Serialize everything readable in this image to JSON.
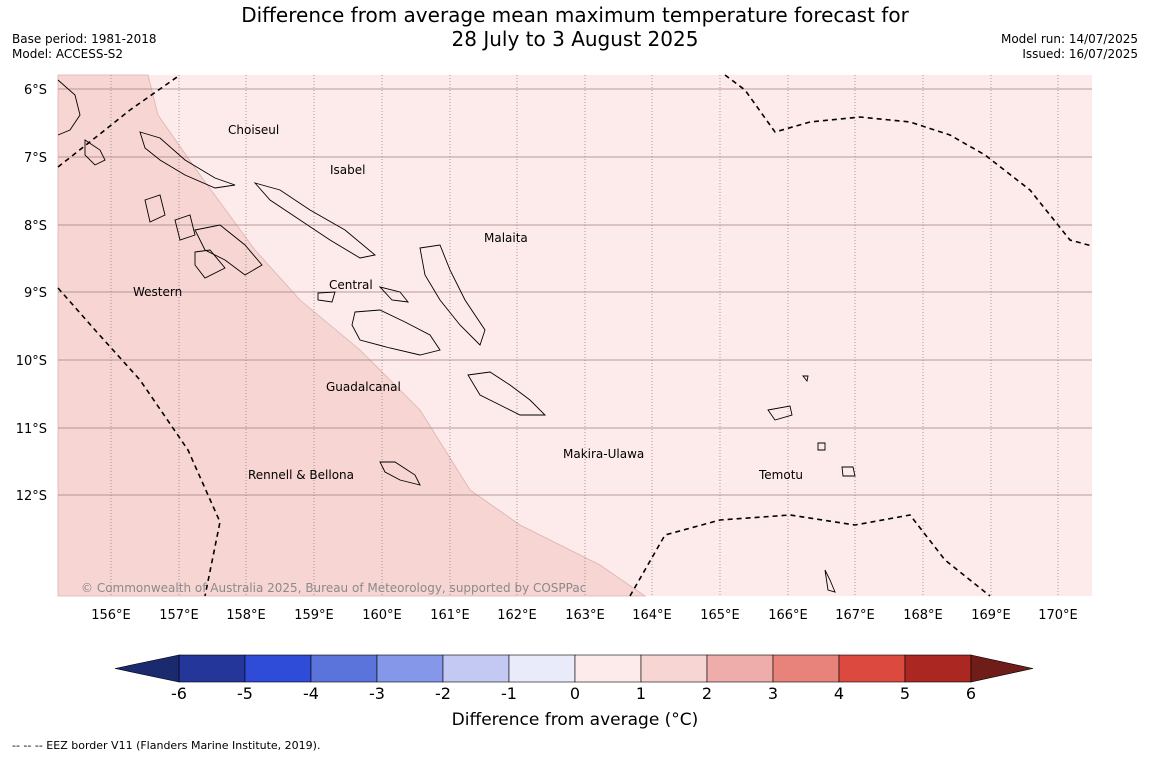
{
  "title_line1": "Difference from average mean maximum temperature forecast for",
  "title_line2": "28 July to 3 August 2025",
  "base_period": "Base period: 1981-2018",
  "model": "Model: ACCESS-S2",
  "model_run": "Model run: 14/07/2025",
  "issued": "Issued: 16/07/2025",
  "copyright": "© Commonwealth of Australia 2025, Bureau of Meteorology, supported by COSPPac",
  "lat_labels": [
    "6°S",
    "7°S",
    "8°S",
    "9°S",
    "10°S",
    "11°S",
    "12°S"
  ],
  "lon_labels": [
    "156°E",
    "157°E",
    "158°E",
    "159°E",
    "160°E",
    "161°E",
    "162°E",
    "163°E",
    "164°E",
    "165°E",
    "166°E",
    "167°E",
    "168°E",
    "169°E",
    "170°E"
  ],
  "regions": [
    "Choiseul",
    "Isabel",
    "Malaita",
    "Western",
    "Central",
    "Guadalcanal",
    "Rennell & Bellona",
    "Makira-Ulawa",
    "Temotu"
  ],
  "colorbar": {
    "ticks": [
      "-6",
      "-5",
      "-4",
      "-3",
      "-2",
      "-1",
      "0",
      "1",
      "2",
      "3",
      "4",
      "5",
      "6"
    ],
    "colors": [
      "#25369a",
      "#2f4cd8",
      "#5a74dc",
      "#8497e8",
      "#c3c9f2",
      "#e9ebfb",
      "#fcebea",
      "#f7d5d3",
      "#eeadaa",
      "#e8837c",
      "#dc4a3f",
      "#ab2721"
    ],
    "under_color": "#1b2a6e",
    "over_color": "#6e1d18",
    "label": "Difference from average (°C)"
  },
  "footnote": "-- -- -- EEZ border V11 (Flanders Marine Institute, 2019)."
}
